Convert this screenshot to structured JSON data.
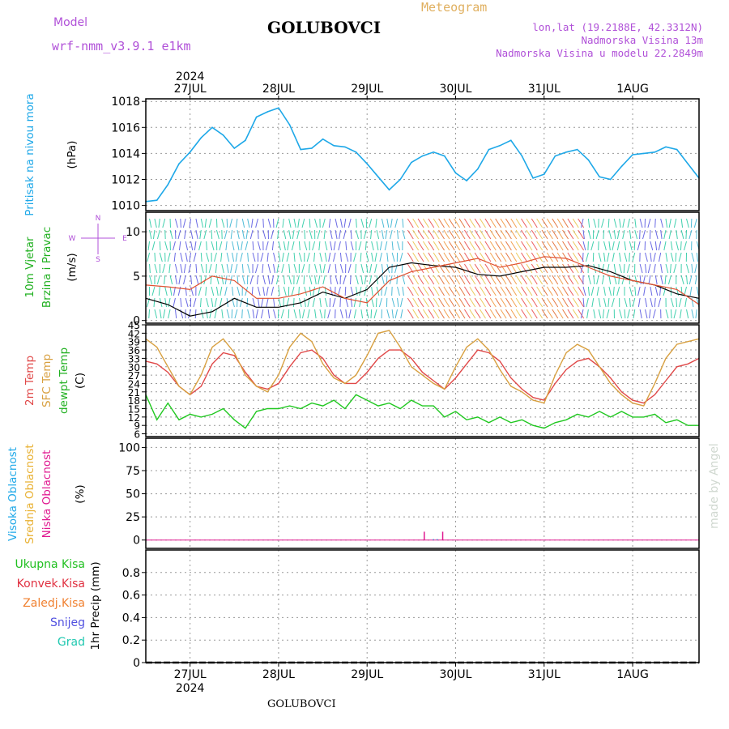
{
  "header": {
    "model_label": "Model",
    "model_name": "wrf-nmm_v3.9.1  e1km",
    "station": "GOLUBOVCI",
    "product": "Meteogram",
    "lonlat": "lon,lat (19.2188E, 42.3312N)",
    "elevation": "Nadmorska Visina 13m",
    "model_elevation": "Nadmorska Visina u modelu 22.2849m",
    "footer_station": "GOLUBOVCI",
    "credit": "made by Angel",
    "year": "2024"
  },
  "colors": {
    "pressure": "#1ea8e8",
    "wind_speed": "#000000",
    "wind_gust": "#e05030",
    "t2m": "#e04848",
    "sfc": "#d8a040",
    "dewpt": "#20c820",
    "cloud_high": "#1ea8e8",
    "cloud_mid": "#e8b030",
    "cloud_low": "#e01890",
    "precip_total": "#20c020",
    "precip_conv": "#e03040",
    "precip_frozen": "#f08030",
    "precip_snow": "#5050e0",
    "precip_grad": "#20c8b0"
  },
  "chart_data": [
    {
      "panel": "pressure",
      "type": "line",
      "ylabel_main": "Pritisak na nivou mora",
      "ylabel_unit": "(hPa)",
      "x_unit": "hours since 26 JUL 12:00",
      "ylim": [
        1009.6,
        1018.2
      ],
      "yticks": [
        1010,
        1012,
        1014,
        1016,
        1018
      ],
      "x": [
        0,
        3,
        6,
        9,
        12,
        15,
        18,
        21,
        24,
        27,
        30,
        33,
        36,
        39,
        42,
        45,
        48,
        51,
        54,
        57,
        60,
        63,
        66,
        69,
        72,
        75,
        78,
        81,
        84,
        87,
        90,
        93,
        96,
        99,
        102,
        105,
        108,
        111,
        114,
        117,
        120,
        123,
        126,
        129,
        132,
        135,
        138,
        141,
        144,
        147,
        150
      ],
      "values": [
        1010.3,
        1010.4,
        1011.6,
        1013.2,
        1014.1,
        1015.2,
        1016.0,
        1015.4,
        1014.4,
        1015.0,
        1016.8,
        1017.2,
        1017.5,
        1016.2,
        1014.3,
        1014.4,
        1015.1,
        1014.6,
        1014.5,
        1014.1,
        1013.2,
        1012.2,
        1011.2,
        1012.0,
        1013.3,
        1013.8,
        1014.1,
        1013.8,
        1012.5,
        1011.9,
        1012.8,
        1014.3,
        1014.6,
        1015.0,
        1013.8,
        1012.1,
        1012.4,
        1013.8,
        1014.1,
        1014.3,
        1013.5,
        1012.2,
        1012.0,
        1013.0,
        1013.9,
        1014.0,
        1014.1,
        1014.5,
        1014.3,
        1013.2,
        1012.1
      ]
    },
    {
      "panel": "wind",
      "type": "line",
      "ylabel_main": "10m Vjetar",
      "ylabel_sub": "Brzina i Pravac",
      "ylabel_unit": "(m/s)",
      "compass_labels": [
        "N",
        "E",
        "W",
        "S"
      ],
      "ylim": [
        -0.3,
        12.2
      ],
      "yticks": [
        0,
        5,
        10
      ],
      "series": [
        {
          "name": "speed",
          "x": [
            0,
            6,
            12,
            18,
            24,
            30,
            36,
            42,
            48,
            54,
            60,
            66,
            72,
            78,
            84,
            90,
            96,
            102,
            108,
            114,
            120,
            126,
            132,
            138,
            144,
            150
          ],
          "values": [
            2.5,
            1.8,
            0.5,
            1.0,
            2.5,
            1.5,
            1.5,
            2.0,
            3.2,
            2.5,
            3.5,
            6.0,
            6.5,
            6.2,
            6.0,
            5.2,
            5.0,
            5.5,
            6.0,
            6.0,
            6.2,
            5.5,
            4.5,
            4.0,
            3.0,
            2.5
          ]
        },
        {
          "name": "gust",
          "x": [
            0,
            6,
            12,
            18,
            24,
            30,
            36,
            42,
            48,
            54,
            60,
            66,
            72,
            78,
            84,
            90,
            96,
            102,
            108,
            114,
            120,
            126,
            132,
            138,
            144,
            150
          ],
          "values": [
            4.0,
            3.8,
            3.5,
            5.0,
            4.5,
            2.5,
            2.5,
            3.0,
            3.8,
            2.5,
            2.0,
            4.5,
            5.5,
            6.0,
            6.5,
            7.0,
            6.0,
            6.5,
            7.2,
            7.0,
            6.0,
            5.0,
            4.5,
            4.0,
            3.5,
            1.8
          ]
        }
      ]
    },
    {
      "panel": "temperature",
      "type": "line",
      "ylabel_main": "2m Temp",
      "ylabel_sub": "SFC Temp",
      "ylabel_sub2": "dewpt Temp",
      "ylabel_unit": "(C)",
      "ylim": [
        5,
        45
      ],
      "yticks": [
        6,
        9,
        12,
        15,
        18,
        21,
        24,
        27,
        30,
        33,
        36,
        39,
        42,
        45
      ],
      "series": [
        {
          "name": "2m Temp",
          "x": [
            0,
            3,
            6,
            9,
            12,
            15,
            18,
            21,
            24,
            27,
            30,
            33,
            36,
            39,
            42,
            45,
            48,
            51,
            54,
            57,
            60,
            63,
            66,
            69,
            72,
            75,
            78,
            81,
            84,
            87,
            90,
            93,
            96,
            99,
            102,
            105,
            108,
            111,
            114,
            117,
            120,
            123,
            126,
            129,
            132,
            135,
            138,
            141,
            144,
            147,
            150
          ],
          "values": [
            32,
            31,
            28,
            23,
            20,
            23,
            31,
            35,
            34,
            28,
            23,
            22,
            24,
            30,
            35,
            36,
            33,
            27,
            24,
            24,
            28,
            33,
            36,
            36,
            33,
            28,
            25,
            22,
            26,
            31,
            36,
            35,
            32,
            26,
            22,
            19,
            18,
            24,
            29,
            32,
            33,
            30,
            26,
            21,
            18,
            17,
            20,
            25,
            30,
            31,
            33
          ]
        },
        {
          "name": "SFC Temp",
          "x": [
            0,
            3,
            6,
            9,
            12,
            15,
            18,
            21,
            24,
            27,
            30,
            33,
            36,
            39,
            42,
            45,
            48,
            51,
            54,
            57,
            60,
            63,
            66,
            69,
            72,
            75,
            78,
            81,
            84,
            87,
            90,
            93,
            96,
            99,
            102,
            105,
            108,
            111,
            114,
            117,
            120,
            123,
            126,
            129,
            132,
            135,
            138,
            141,
            144,
            147,
            150
          ],
          "values": [
            40,
            37,
            30,
            23,
            20,
            27,
            37,
            40,
            35,
            27,
            23,
            21,
            27,
            37,
            42,
            39,
            31,
            26,
            24,
            27,
            34,
            42,
            43,
            37,
            30,
            27,
            24,
            22,
            30,
            37,
            40,
            36,
            29,
            23,
            21,
            18,
            17,
            27,
            35,
            38,
            36,
            30,
            24,
            20,
            17,
            16,
            24,
            33,
            38,
            39,
            40
          ]
        },
        {
          "name": "dewpt Temp",
          "x": [
            0,
            3,
            6,
            9,
            12,
            15,
            18,
            21,
            24,
            27,
            30,
            33,
            36,
            39,
            42,
            45,
            48,
            51,
            54,
            57,
            60,
            63,
            66,
            69,
            72,
            75,
            78,
            81,
            84,
            87,
            90,
            93,
            96,
            99,
            102,
            105,
            108,
            111,
            114,
            117,
            120,
            123,
            126,
            129,
            132,
            135,
            138,
            141,
            144,
            147,
            150
          ],
          "values": [
            20,
            11,
            17,
            11,
            13,
            12,
            13,
            15,
            11,
            8,
            14,
            15,
            15,
            16,
            15,
            17,
            16,
            18,
            15,
            20,
            18,
            16,
            17,
            15,
            18,
            16,
            16,
            12,
            14,
            11,
            12,
            10,
            12,
            10,
            11,
            9,
            8,
            10,
            11,
            13,
            12,
            14,
            12,
            14,
            12,
            12,
            13,
            10,
            11,
            9,
            9
          ]
        }
      ]
    },
    {
      "panel": "cloud",
      "type": "bar",
      "ylabel_main": "Visoka Oblacnost",
      "ylabel_sub": "Srednja Oblacnost",
      "ylabel_sub2": "Niska Oblacnost",
      "ylabel_unit": "(%)",
      "ylim": [
        -9,
        110
      ],
      "yticks": [
        0,
        25,
        50,
        75,
        100
      ],
      "series": [
        {
          "name": "Niska Oblacnost",
          "x": [
            75.5,
            80.5
          ],
          "values": [
            9,
            9
          ]
        },
        {
          "name": "Srednja Oblacnost",
          "x": [],
          "values": []
        },
        {
          "name": "Visoka Oblacnost",
          "x": [
            78,
            79
          ],
          "values": [
            1,
            1
          ]
        }
      ]
    },
    {
      "panel": "precip",
      "type": "bar",
      "ylabel_unit": "1hr Precip (mm)",
      "legend": [
        "Ukupna Kisa",
        "Konvek.Kisa",
        "Zaledj.Kisa",
        "Snijeg",
        "Grad"
      ],
      "ylim": [
        0,
        1.0
      ],
      "yticks": [
        0,
        0.2,
        0.4,
        0.6,
        0.8
      ],
      "series": []
    }
  ],
  "time_axis": {
    "labels": [
      "27JUL",
      "28JUL",
      "29JUL",
      "30JUL",
      "31JUL",
      "1AUG"
    ],
    "label_hours": [
      12,
      36,
      60,
      84,
      108,
      132
    ],
    "range_hours": [
      0,
      150
    ]
  }
}
